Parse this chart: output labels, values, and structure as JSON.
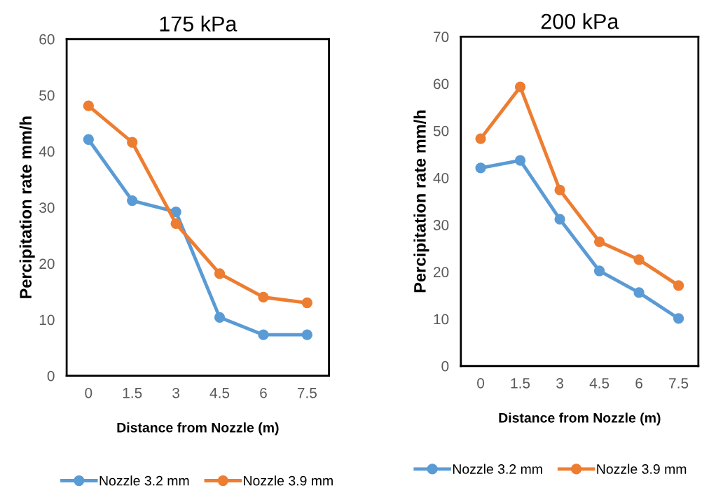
{
  "chart_data": [
    {
      "type": "line",
      "title": "175 kPa",
      "xlabel": "Distance from Nozzle (m)",
      "ylabel": "Percipitation rate mm/h",
      "categories": [
        "0",
        "1.5",
        "3",
        "4.5",
        "6",
        "7.5"
      ],
      "ylim": [
        0,
        60
      ],
      "yticks": [
        0,
        10,
        20,
        30,
        40,
        50,
        60
      ],
      "grid": false,
      "legend": "bottom",
      "marker": "circle",
      "line_style": "solid",
      "series": [
        {
          "name": "Nozzle 3.2 mm",
          "color": "#5b9bd5",
          "values": [
            42.1,
            31.2,
            29.2,
            10.4,
            7.3,
            7.3
          ]
        },
        {
          "name": "Nozzle 3.9 mm",
          "color": "#ed7d31",
          "values": [
            48.1,
            41.6,
            27.1,
            18.2,
            14.0,
            13.0
          ]
        }
      ]
    },
    {
      "type": "line",
      "title": "200 kPa",
      "xlabel": "Distance from Nozzle (m)",
      "ylabel": "Percipitation rate mm/h",
      "categories": [
        "0",
        "1.5",
        "3",
        "4.5",
        "6",
        "7.5"
      ],
      "ylim": [
        0,
        70
      ],
      "yticks": [
        0,
        10,
        20,
        30,
        40,
        50,
        60,
        70
      ],
      "grid": false,
      "legend": "bottom",
      "marker": "circle",
      "line_style": "solid",
      "series": [
        {
          "name": "Nozzle 3.2 mm",
          "color": "#5b9bd5",
          "values": [
            42.1,
            43.7,
            31.2,
            20.2,
            15.6,
            10.1
          ]
        },
        {
          "name": "Nozzle 3.9 mm",
          "color": "#ed7d31",
          "values": [
            48.3,
            59.3,
            37.4,
            26.4,
            22.6,
            17.1
          ]
        }
      ]
    }
  ]
}
